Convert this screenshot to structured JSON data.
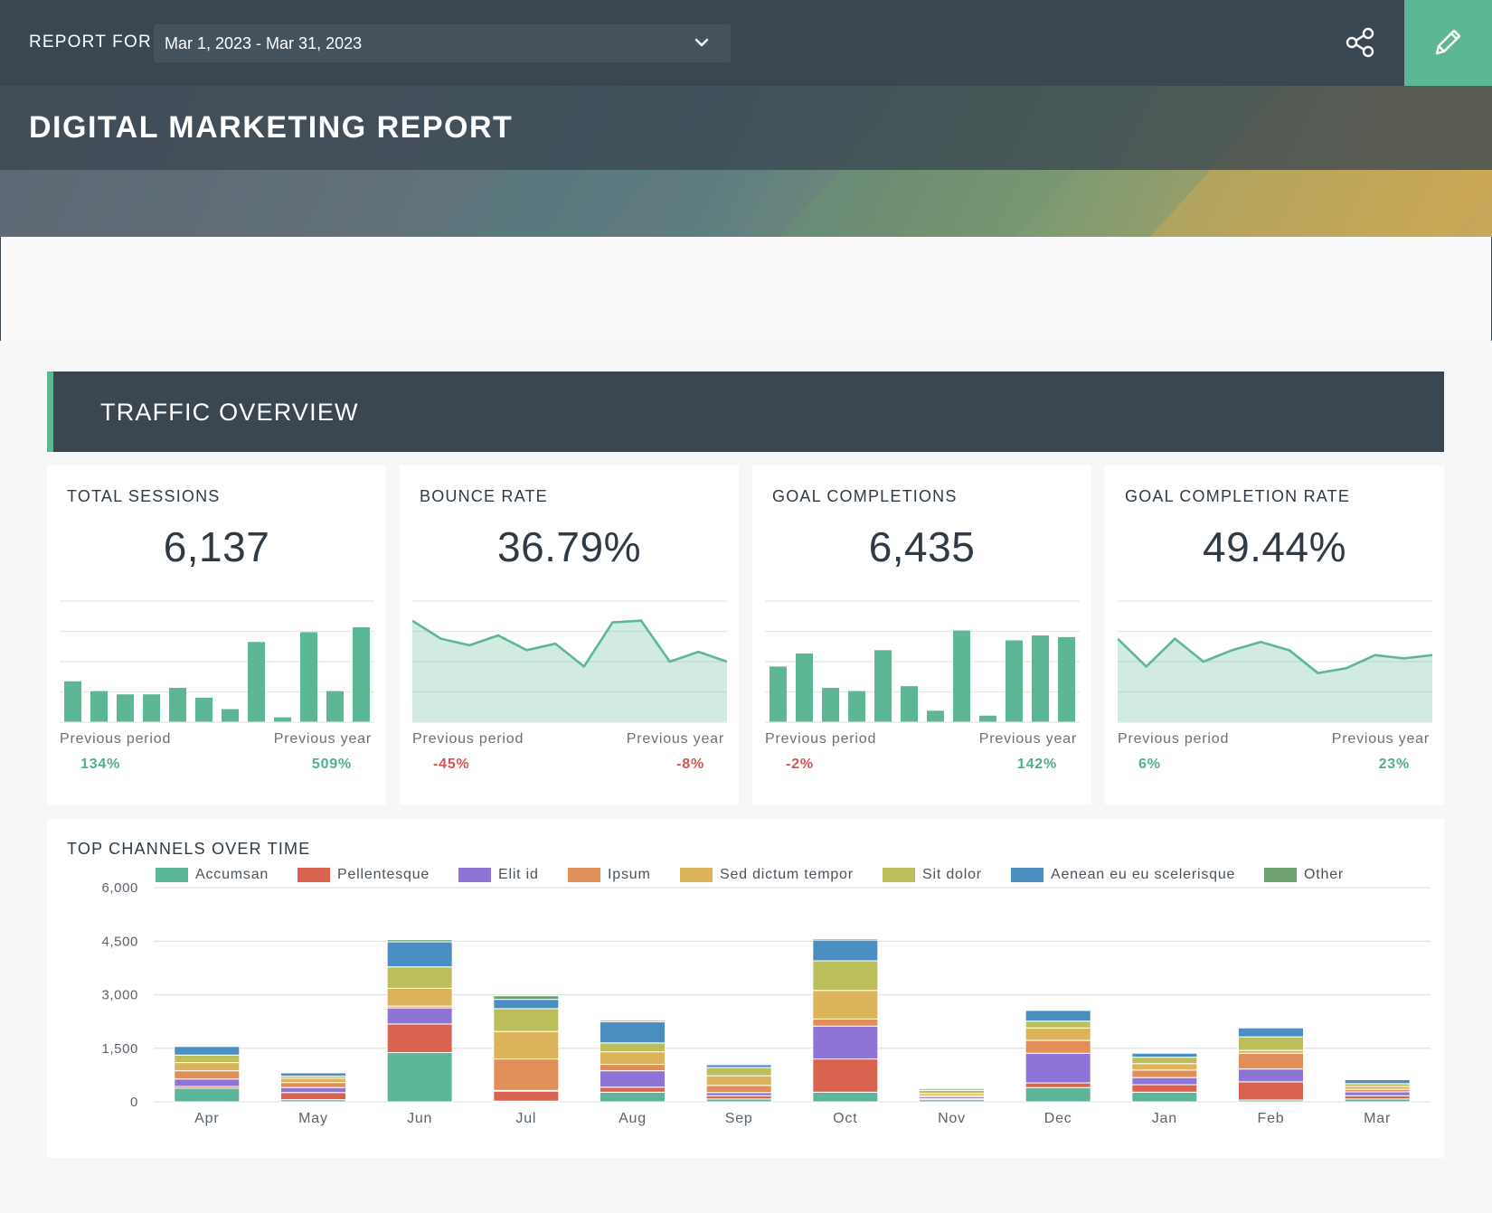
{
  "header": {
    "report_for_label": "REPORT FOR",
    "date_range": "Mar 1, 2023 - Mar 31, 2023",
    "title": "DIGITAL MARKETING REPORT"
  },
  "colors": {
    "dark": "#3a4751",
    "accent": "#5db795",
    "positive": "#4fb08b",
    "negative": "#d9534f"
  },
  "section": {
    "title": "TRAFFIC OVERVIEW"
  },
  "kpis": [
    {
      "label": "TOTAL SESSIONS",
      "value": "6,137",
      "prev_period_label": "Previous period",
      "prev_period_change": "134%",
      "prev_period_trend": "pos",
      "prev_year_label": "Previous year",
      "prev_year_change": "509%",
      "prev_year_trend": "pos"
    },
    {
      "label": "BOUNCE RATE",
      "value": "36.79%",
      "prev_period_label": "Previous period",
      "prev_period_change": "-45%",
      "prev_period_trend": "neg",
      "prev_year_label": "Previous year",
      "prev_year_change": "-8%",
      "prev_year_trend": "neg"
    },
    {
      "label": "GOAL COMPLETIONS",
      "value": "6,435",
      "prev_period_label": "Previous period",
      "prev_period_change": "-2%",
      "prev_period_trend": "neg",
      "prev_year_label": "Previous year",
      "prev_year_change": "142%",
      "prev_year_trend": "pos"
    },
    {
      "label": "GOAL COMPLETION RATE",
      "value": "49.44%",
      "prev_period_label": "Previous period",
      "prev_period_change": "6%",
      "prev_period_trend": "pos",
      "prev_year_label": "Previous year",
      "prev_year_change": "23%",
      "prev_year_trend": "pos"
    }
  ],
  "chart_data": [
    {
      "type": "bar",
      "title": "",
      "values": [
        25,
        19,
        17,
        17,
        21,
        15,
        8,
        49,
        3,
        55,
        19,
        58
      ],
      "ylim": [
        0,
        74
      ]
    },
    {
      "type": "area",
      "title": "",
      "values": [
        62,
        51,
        47,
        53,
        44,
        48,
        34,
        61,
        62,
        37,
        43,
        37
      ],
      "ylim": [
        0,
        74
      ]
    },
    {
      "type": "bar",
      "title": "",
      "values": [
        34,
        42,
        21,
        19,
        44,
        22,
        7,
        56,
        4,
        50,
        53,
        52
      ],
      "ylim": [
        0,
        74
      ]
    },
    {
      "type": "area",
      "title": "",
      "values": [
        51,
        34,
        51,
        37,
        44,
        49,
        44,
        30,
        33,
        41,
        39,
        41
      ],
      "ylim": [
        0,
        74
      ]
    },
    {
      "type": "bar",
      "title": "TOP CHANNELS OVER TIME",
      "stacked": true,
      "categories": [
        "Apr",
        "May",
        "Jun",
        "Jul",
        "Aug",
        "Sep",
        "Oct",
        "Nov",
        "Dec",
        "Jan",
        "Feb",
        "Mar"
      ],
      "ylim": [
        0,
        6000
      ],
      "yticks": [
        "6,000",
        "4,500",
        "3,000",
        "1,500",
        "0"
      ],
      "grid": true,
      "legend_position": "top",
      "series": [
        {
          "name": "Accumsan",
          "color": "#5db59a",
          "values": [
            380,
            60,
            1380,
            20,
            270,
            80,
            270,
            60,
            400,
            270,
            50,
            80
          ]
        },
        {
          "name": "Pellentesque",
          "color": "#d9634f",
          "values": [
            50,
            200,
            800,
            280,
            140,
            90,
            930,
            30,
            130,
            210,
            510,
            90
          ]
        },
        {
          "name": "Elit id",
          "color": "#8d74d6",
          "values": [
            210,
            140,
            450,
            20,
            460,
            90,
            920,
            50,
            830,
            200,
            360,
            110
          ]
        },
        {
          "name": "Ipsum",
          "color": "#e28e58",
          "values": [
            230,
            140,
            50,
            880,
            180,
            200,
            200,
            40,
            360,
            210,
            440,
            70
          ]
        },
        {
          "name": "Sed dictum tempor",
          "color": "#dbb35a",
          "values": [
            230,
            120,
            500,
            770,
            350,
            270,
            800,
            60,
            350,
            180,
            80,
            80
          ]
        },
        {
          "name": "Sit dolor",
          "color": "#bcbe5c",
          "values": [
            210,
            60,
            600,
            640,
            250,
            230,
            830,
            80,
            190,
            180,
            380,
            80
          ]
        },
        {
          "name": "Aenean eu eu scelerisque",
          "color": "#4a8ec2",
          "values": [
            240,
            90,
            700,
            260,
            590,
            80,
            580,
            40,
            300,
            110,
            250,
            110
          ]
        },
        {
          "name": "Other",
          "color": "#6da271",
          "values": [
            0,
            0,
            60,
            100,
            40,
            0,
            40,
            30,
            0,
            0,
            0,
            0
          ]
        }
      ]
    }
  ]
}
